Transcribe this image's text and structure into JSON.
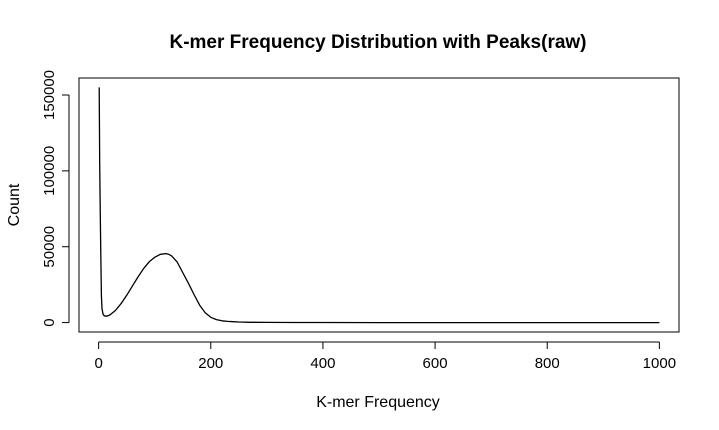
{
  "chart_data": {
    "type": "line",
    "title": "K-mer Frequency Distribution with Peaks(raw)",
    "xlabel": "K-mer Frequency",
    "ylabel": "Count",
    "xlim": [
      -35,
      1035
    ],
    "ylim": [
      -6200,
      161200
    ],
    "xticks": [
      0,
      200,
      400,
      600,
      800,
      1000
    ],
    "yticks": [
      0,
      50000,
      100000,
      150000
    ],
    "xtick_labels": [
      "0",
      "200",
      "400",
      "600",
      "800",
      "1000"
    ],
    "ytick_labels": [
      "0",
      "50000",
      "100000",
      "150000"
    ],
    "grid": false,
    "legend": "none",
    "series": [
      {
        "color": "#000000",
        "x": [
          1,
          2,
          3,
          4,
          5,
          6,
          8,
          10,
          15,
          20,
          30,
          40,
          50,
          60,
          70,
          80,
          90,
          100,
          110,
          120,
          125,
          130,
          140,
          150,
          160,
          170,
          180,
          190,
          200,
          210,
          220,
          230,
          240,
          250,
          270,
          300,
          350,
          400,
          500,
          600,
          700,
          800,
          900,
          1000
        ],
        "y": [
          155000,
          105000,
          70000,
          40000,
          18000,
          9000,
          5500,
          4500,
          4200,
          5000,
          8000,
          12500,
          18000,
          24000,
          30000,
          35500,
          40000,
          43000,
          45000,
          45500,
          45000,
          44000,
          40000,
          33000,
          26000,
          18500,
          11500,
          6500,
          3500,
          2000,
          1200,
          800,
          600,
          400,
          200,
          100,
          50,
          30,
          10,
          5,
          2,
          1,
          0,
          0
        ]
      }
    ]
  }
}
